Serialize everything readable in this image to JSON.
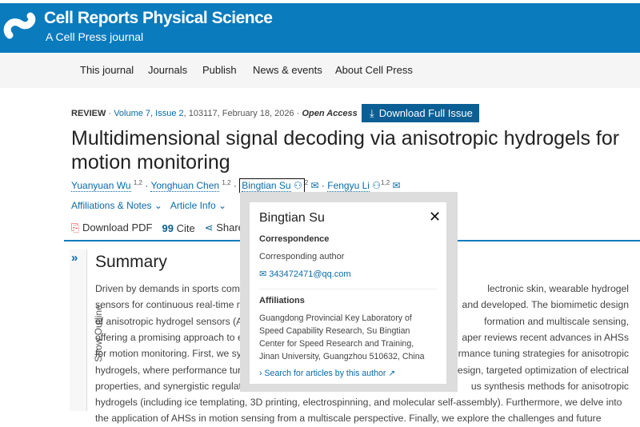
{
  "header": {
    "journal_title": "Cell Reports Physical Science",
    "subtitle": "A Cell Press journal",
    "brand_color": "#0a7bbd"
  },
  "nav": [
    "This journal",
    "Journals",
    "Publish",
    "News & events",
    "About Cell Press"
  ],
  "meta": {
    "type": "REVIEW",
    "volume": "Volume 7, Issue 2",
    "article_no": ", 103117, February 18, 2026",
    "sep": " · ",
    "access": "Open Access"
  },
  "download_issue": "Download Full Issue",
  "title": "Multidimensional signal decoding via anisotropic hydrogels for motion monitoring",
  "authors": [
    {
      "name": "Yuanyuan Wu",
      "sup": "1,2"
    },
    {
      "name": "Yonghuan Chen",
      "sup": "1,2"
    },
    {
      "name": "Bingtian Su",
      "sup": "2"
    },
    {
      "name": "Fengyu Li",
      "sup": "1,2"
    }
  ],
  "links": {
    "affiliations": "Affiliations & Notes",
    "article_info": "Article Info"
  },
  "actions": {
    "pdf": "Download PDF",
    "cite": "Cite",
    "share": "Share"
  },
  "outline": "Show Outline",
  "summary": {
    "heading": "Summary",
    "lines": [
      [
        "Driven by demands in sports comp",
        "lectronic skin, wearable hydrogel"
      ],
      [
        "sensors for continuous real-time m",
        "and developed. The biomimetic design"
      ],
      [
        "of anisotropic hydrogel sensors (A",
        "formation and multiscale sensing,"
      ],
      [
        "offering a promising approach to e",
        "aper reviews recent advances in AHSs"
      ],
      [
        "for motion monitoring. First, we sy",
        "rmance tuning strategies for anisotropic"
      ],
      [
        "hydrogels, where performance tur",
        "esign, targeted optimization of electrical"
      ],
      [
        "properties, and synergistic regulat",
        "us synthesis methods for anisotropic"
      ],
      [
        "hydrogels (including ice templating, 3D printing, electrospinning, and molecular self-assembly). Furthermore, we delve into",
        ""
      ],
      [
        "the application of AHSs in motion sensing from a multiscale perspective. Finally, we explore the challenges and future",
        ""
      ]
    ]
  },
  "popup": {
    "name": "Bingtian Su",
    "correspondence_label": "Correspondence",
    "role": "Corresponding author",
    "email": "343472471@qq.com",
    "affiliations_label": "Affiliations",
    "affiliation_lines": [
      "Guangdong Provincial Key Laboratory of",
      "Speed Capability Research, Su Bingtian",
      "Center for Speed Research and Training,",
      "Jinan University, Guangzhou 510632, China"
    ],
    "search_link": "Search for articles by this author"
  }
}
